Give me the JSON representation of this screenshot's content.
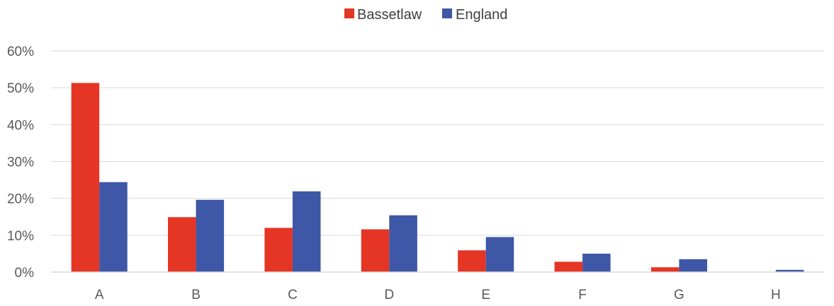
{
  "chart_data": {
    "type": "bar",
    "categories": [
      "A",
      "B",
      "C",
      "D",
      "E",
      "F",
      "G",
      "H"
    ],
    "series": [
      {
        "name": "Bassetlaw",
        "color": "#E53525",
        "values": [
          51.3,
          14.9,
          12.0,
          11.6,
          5.9,
          2.8,
          1.3,
          0.0
        ]
      },
      {
        "name": "England",
        "color": "#3E57A6",
        "values": [
          24.4,
          19.6,
          21.9,
          15.4,
          9.5,
          5.0,
          3.5,
          0.6
        ]
      }
    ],
    "ylim": [
      0,
      60
    ],
    "yticks": [
      0,
      10,
      20,
      30,
      40,
      50,
      60
    ],
    "ytick_labels": [
      "0%",
      "10%",
      "20%",
      "30%",
      "40%",
      "50%",
      "60%"
    ],
    "ytick_format": "%",
    "grid": true,
    "gridline_color": "#D9D9D9",
    "legend_position": "top"
  }
}
